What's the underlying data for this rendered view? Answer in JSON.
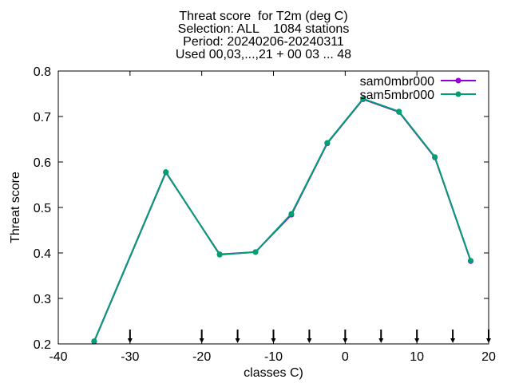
{
  "chart_data": {
    "type": "line",
    "title_lines": [
      "Threat score  for T2m (deg C)",
      "Selection: ALL    1084 stations",
      "Period: 20240206-20240311",
      "Used 00,03,...,21 + 00 03 ... 48"
    ],
    "xlabel": "classes C)",
    "ylabel": "Threat score",
    "xlim": [
      -40,
      20
    ],
    "ylim": [
      0.2,
      0.8
    ],
    "xticks": [
      -40,
      -30,
      -20,
      -10,
      0,
      10,
      20
    ],
    "xtick_labels": [
      "-40",
      "-30",
      "-20",
      "-10",
      "0",
      "10",
      "20"
    ],
    "yticks": [
      0.2,
      0.3,
      0.4,
      0.5,
      0.6,
      0.7,
      0.8
    ],
    "ytick_labels": [
      "0.2",
      "0.3",
      "0.4",
      "0.5",
      "0.6",
      "0.7",
      "0.8"
    ],
    "class_markers": [
      -30,
      -20,
      -15,
      -10,
      -5,
      0,
      5,
      10,
      15,
      20
    ],
    "legend_position": "top-right",
    "grid": false,
    "series": [
      {
        "name": "sam0mbr000",
        "color": "#9400d3",
        "x": [
          -35,
          -25,
          -17.5,
          -12.5,
          -7.5,
          -2.5,
          2.5,
          7.5,
          12.5,
          17.5
        ],
        "y": [
          0.205,
          0.577,
          0.397,
          0.402,
          0.484,
          0.641,
          0.738,
          0.71,
          0.61,
          0.382
        ]
      },
      {
        "name": "sam5mbr000",
        "color": "#009e73",
        "x": [
          -35,
          -25,
          -17.5,
          -12.5,
          -7.5,
          -2.5,
          2.5,
          7.5,
          12.5,
          17.5
        ],
        "y": [
          0.206,
          0.578,
          0.396,
          0.402,
          0.486,
          0.642,
          0.739,
          0.711,
          0.611,
          0.383
        ]
      }
    ]
  }
}
